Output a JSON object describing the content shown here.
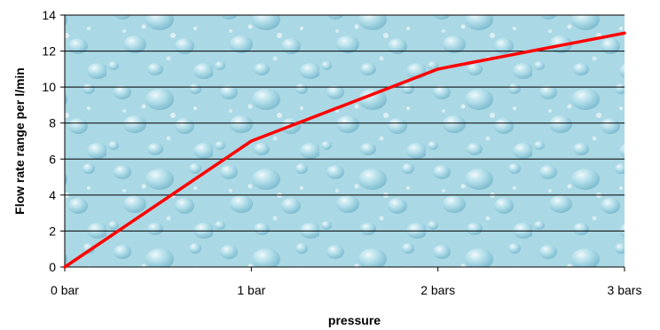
{
  "chart_data": {
    "type": "line",
    "title": "",
    "xlabel": "pressure",
    "ylabel": "Flow rate range per l/min",
    "x_categories": [
      "0 bar",
      "1 bar",
      "2 bars",
      "3 bars"
    ],
    "x": [
      0,
      1,
      2,
      3
    ],
    "ylim": [
      0,
      14
    ],
    "y_ticks": [
      0,
      2,
      4,
      6,
      8,
      10,
      12,
      14
    ],
    "grid": "horizontal",
    "legend": "none",
    "series": [
      {
        "values": [
          0,
          7,
          11,
          13
        ],
        "color": "#ff0000"
      }
    ],
    "colors": {
      "plot_background": "#a9d7e3",
      "gridline": "#000000",
      "line": "#ff0000"
    }
  }
}
